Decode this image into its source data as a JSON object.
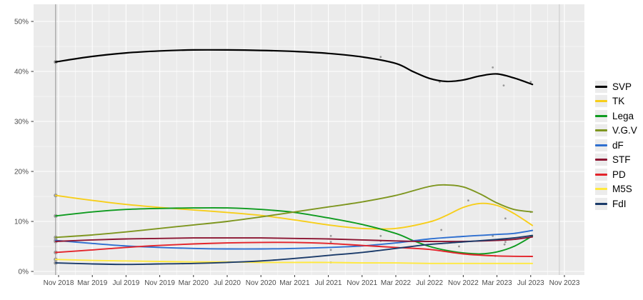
{
  "chart_data": {
    "type": "line",
    "title": "",
    "xlabel": "",
    "ylabel": "",
    "x_unit": "months since Nov 2018 (smoothed polling trend lines with poll-result dots)",
    "x_tick_months": [
      0,
      4,
      8,
      12,
      16,
      20,
      24,
      28,
      32,
      36,
      40,
      44,
      48,
      52,
      56,
      60
    ],
    "x_tick_labels": [
      "Nov 2018",
      "Mar 2019",
      "Jul 2019",
      "Nov 2019",
      "Mar 2020",
      "Jul 2020",
      "Nov 2020",
      "Mar 2021",
      "Jul 2021",
      "Nov 2021",
      "Mar 2022",
      "Jul 2022",
      "Nov 2022",
      "Mar 2023",
      "Jul 2023",
      "Nov 2023"
    ],
    "y_tick_values": [
      0,
      10,
      20,
      30,
      40,
      50
    ],
    "y_tick_labels": [
      "0%",
      "10%",
      "20%",
      "30%",
      "40%",
      "50%"
    ],
    "y_minor_values": [
      5,
      15,
      25,
      35,
      45
    ],
    "x_minor_months": [
      2,
      6,
      10,
      14,
      18,
      22,
      26,
      30,
      34,
      38,
      42,
      46,
      50,
      54,
      58
    ],
    "ylim": [
      0,
      53
    ],
    "grid": true,
    "legend_position": "right",
    "panel_bg": "#EBEBEB",
    "grid_color": "#FFFFFF",
    "axis_text_color": "#4D4D4D",
    "tick_color": "#333333",
    "scatter_color": "#9A9A9A",
    "event_lines": [
      {
        "name": "election-2018",
        "month": -0.35,
        "color": "#8F8F8F"
      },
      {
        "name": "election-2023",
        "month": 59.4,
        "color": "#C9C9C9"
      }
    ],
    "series": [
      {
        "name": "SVP",
        "color": "#000000",
        "width": 2.2,
        "points": [
          [
            -0.35,
            41.9
          ],
          [
            4,
            43.0
          ],
          [
            8,
            43.7
          ],
          [
            12,
            44.1
          ],
          [
            16,
            44.3
          ],
          [
            20,
            44.3
          ],
          [
            24,
            44.2
          ],
          [
            28,
            44.0
          ],
          [
            32,
            43.6
          ],
          [
            36,
            42.9
          ],
          [
            40,
            41.6
          ],
          [
            42,
            40.0
          ],
          [
            44,
            38.6
          ],
          [
            46,
            38.0
          ],
          [
            48,
            38.3
          ],
          [
            50,
            39.1
          ],
          [
            52,
            39.5
          ],
          [
            54,
            38.7
          ],
          [
            56.2,
            37.4
          ]
        ]
      },
      {
        "name": "TK",
        "color": "#F7CE1A",
        "width": 1.9,
        "points": [
          [
            -0.35,
            15.2
          ],
          [
            4,
            14.2
          ],
          [
            8,
            13.4
          ],
          [
            12,
            12.8
          ],
          [
            16,
            12.3
          ],
          [
            20,
            11.8
          ],
          [
            24,
            11.2
          ],
          [
            28,
            10.3
          ],
          [
            32,
            9.3
          ],
          [
            36,
            8.6
          ],
          [
            40,
            8.6
          ],
          [
            44,
            9.9
          ],
          [
            46,
            11.2
          ],
          [
            48,
            12.8
          ],
          [
            50,
            13.6
          ],
          [
            52,
            13.2
          ],
          [
            54,
            11.6
          ],
          [
            56.2,
            9.2
          ]
        ]
      },
      {
        "name": "Lega",
        "color": "#0E9B1F",
        "width": 1.9,
        "points": [
          [
            -0.35,
            11.1
          ],
          [
            4,
            11.9
          ],
          [
            8,
            12.4
          ],
          [
            12,
            12.6
          ],
          [
            16,
            12.7
          ],
          [
            20,
            12.7
          ],
          [
            24,
            12.4
          ],
          [
            28,
            11.8
          ],
          [
            32,
            10.7
          ],
          [
            36,
            9.4
          ],
          [
            40,
            7.6
          ],
          [
            42,
            6.2
          ],
          [
            44,
            5.0
          ],
          [
            46,
            4.2
          ],
          [
            48,
            3.7
          ],
          [
            50,
            3.5
          ],
          [
            52,
            3.9
          ],
          [
            54,
            5.0
          ],
          [
            56.2,
            7.1
          ]
        ]
      },
      {
        "name": "V.G.V",
        "color": "#7E961F",
        "width": 1.9,
        "points": [
          [
            -0.35,
            6.8
          ],
          [
            4,
            7.3
          ],
          [
            8,
            7.9
          ],
          [
            12,
            8.6
          ],
          [
            16,
            9.3
          ],
          [
            20,
            10.0
          ],
          [
            24,
            10.9
          ],
          [
            28,
            11.9
          ],
          [
            32,
            12.9
          ],
          [
            36,
            13.9
          ],
          [
            40,
            15.2
          ],
          [
            44,
            17.0
          ],
          [
            46,
            17.3
          ],
          [
            48,
            16.9
          ],
          [
            50,
            15.5
          ],
          [
            52,
            13.7
          ],
          [
            54,
            12.4
          ],
          [
            56.2,
            11.9
          ]
        ]
      },
      {
        "name": "dF",
        "color": "#2E6FD0",
        "width": 1.9,
        "points": [
          [
            -0.35,
            6.2
          ],
          [
            4,
            5.6
          ],
          [
            8,
            5.1
          ],
          [
            12,
            4.8
          ],
          [
            16,
            4.6
          ],
          [
            20,
            4.5
          ],
          [
            24,
            4.5
          ],
          [
            28,
            4.6
          ],
          [
            32,
            4.8
          ],
          [
            36,
            5.1
          ],
          [
            40,
            5.7
          ],
          [
            44,
            6.5
          ],
          [
            48,
            7.0
          ],
          [
            52,
            7.4
          ],
          [
            54,
            7.6
          ],
          [
            56.2,
            8.2
          ]
        ]
      },
      {
        "name": "STF",
        "color": "#8C1532",
        "width": 1.9,
        "points": [
          [
            -0.35,
            6.0
          ],
          [
            4,
            6.3
          ],
          [
            8,
            6.5
          ],
          [
            12,
            6.6
          ],
          [
            16,
            6.7
          ],
          [
            20,
            6.7
          ],
          [
            24,
            6.7
          ],
          [
            28,
            6.6
          ],
          [
            32,
            6.5
          ],
          [
            36,
            6.3
          ],
          [
            40,
            6.1
          ],
          [
            44,
            6.0
          ],
          [
            48,
            6.0
          ],
          [
            52,
            6.2
          ],
          [
            54,
            6.4
          ],
          [
            56.2,
            6.9
          ]
        ]
      },
      {
        "name": "PD",
        "color": "#E3242B",
        "width": 1.9,
        "points": [
          [
            -0.35,
            3.8
          ],
          [
            4,
            4.3
          ],
          [
            8,
            4.8
          ],
          [
            12,
            5.2
          ],
          [
            16,
            5.5
          ],
          [
            20,
            5.7
          ],
          [
            24,
            5.8
          ],
          [
            28,
            5.8
          ],
          [
            32,
            5.6
          ],
          [
            36,
            5.2
          ],
          [
            40,
            4.8
          ],
          [
            44,
            4.4
          ],
          [
            48,
            3.5
          ],
          [
            52,
            3.1
          ],
          [
            56.2,
            3.0
          ]
        ]
      },
      {
        "name": "M5S",
        "color": "#FFE93F",
        "width": 1.9,
        "points": [
          [
            -0.35,
            2.4
          ],
          [
            4,
            2.2
          ],
          [
            8,
            2.1
          ],
          [
            12,
            2.0
          ],
          [
            16,
            1.9
          ],
          [
            20,
            1.9
          ],
          [
            24,
            1.8
          ],
          [
            28,
            1.8
          ],
          [
            32,
            1.8
          ],
          [
            36,
            1.7
          ],
          [
            40,
            1.7
          ],
          [
            44,
            1.6
          ],
          [
            48,
            1.6
          ],
          [
            52,
            1.6
          ],
          [
            56.2,
            1.6
          ]
        ]
      },
      {
        "name": "FdI",
        "color": "#1B3B6A",
        "width": 1.9,
        "points": [
          [
            -0.35,
            1.7
          ],
          [
            4,
            1.5
          ],
          [
            8,
            1.4
          ],
          [
            12,
            1.5
          ],
          [
            16,
            1.6
          ],
          [
            20,
            1.8
          ],
          [
            24,
            2.1
          ],
          [
            28,
            2.6
          ],
          [
            32,
            3.2
          ],
          [
            36,
            3.8
          ],
          [
            40,
            4.6
          ],
          [
            44,
            5.4
          ],
          [
            48,
            5.9
          ],
          [
            52,
            6.4
          ],
          [
            54,
            6.7
          ],
          [
            56.2,
            7.2
          ]
        ]
      }
    ],
    "scatter_points": [
      [
        -0.35,
        41.9
      ],
      [
        -0.35,
        15.2
      ],
      [
        -0.35,
        11.1
      ],
      [
        -0.35,
        6.8
      ],
      [
        -0.35,
        6.2
      ],
      [
        -0.35,
        6.0
      ],
      [
        -0.35,
        3.8
      ],
      [
        -0.35,
        2.4
      ],
      [
        -0.35,
        1.7
      ],
      [
        32.3,
        7.1
      ],
      [
        32.3,
        5.9
      ],
      [
        32.3,
        4.3
      ],
      [
        32.3,
        1.8
      ],
      [
        38.2,
        42.9
      ],
      [
        38.2,
        7.1
      ],
      [
        38.2,
        6.1
      ],
      [
        45.2,
        37.9
      ],
      [
        45.4,
        8.3
      ],
      [
        47.5,
        5.0
      ],
      [
        48.6,
        14.2
      ],
      [
        51.5,
        40.8
      ],
      [
        51.5,
        7.1
      ],
      [
        51.8,
        3.1
      ],
      [
        52.8,
        37.2
      ],
      [
        53.0,
        10.6
      ],
      [
        53.0,
        5.9
      ],
      [
        52.9,
        5.4
      ],
      [
        56.0,
        37.9
      ],
      [
        56.0,
        11.9
      ]
    ],
    "legend": [
      {
        "label": "SVP",
        "color": "#000000"
      },
      {
        "label": "TK",
        "color": "#F7CE1A"
      },
      {
        "label": "Lega",
        "color": "#0E9B1F"
      },
      {
        "label": "V.G.V",
        "color": "#7E961F"
      },
      {
        "label": "dF",
        "color": "#2E6FD0"
      },
      {
        "label": "STF",
        "color": "#8C1532"
      },
      {
        "label": "PD",
        "color": "#E3242B"
      },
      {
        "label": "M5S",
        "color": "#FFE93F"
      },
      {
        "label": "FdI",
        "color": "#1B3B6A"
      }
    ]
  }
}
